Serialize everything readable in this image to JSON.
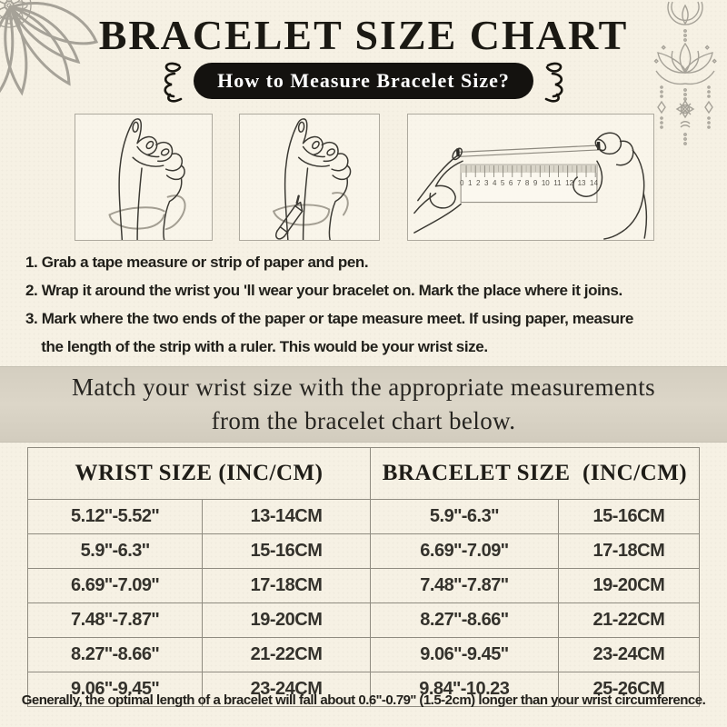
{
  "page": {
    "bg_color": "#f6f1e4",
    "banner_color": "#d8d2c4",
    "ink_color": "#1b1913",
    "line_color": "#8f8b80"
  },
  "header": {
    "title": "BRACELET SIZE CHART",
    "subtitle": "How to Measure Bracelet Size?"
  },
  "illustrations": {
    "items": [
      "wrap-tape-around-wrist",
      "mark-meeting-point-with-pen",
      "measure-strip-with-ruler"
    ],
    "ruler_numbers": [
      "0",
      "1",
      "2",
      "3",
      "4",
      "5",
      "6",
      "7",
      "8",
      "9",
      "10",
      "11",
      "12",
      "13",
      "14"
    ]
  },
  "steps": [
    "1. Grab a tape measure or strip of paper and pen.",
    "2. Wrap it around the wrist you 'll wear your bracelet on. Mark the place where it joins.",
    "3. Mark where the two ends of the paper or tape measure meet. If using paper, measure\n    the length of the strip with a ruler. This would be your wrist size."
  ],
  "banner": {
    "line1": "Match your wrist size with the appropriate measurements",
    "line2": "from the bracelet chart below."
  },
  "table": {
    "headers": [
      "WRIST SIZE (INC/CM)",
      "BRACELET SIZE  (INC/CM)"
    ],
    "rows": [
      [
        "5.12''-5.52''",
        "13-14CM",
        "5.9''-6.3''",
        "15-16CM"
      ],
      [
        "5.9''-6.3''",
        "15-16CM",
        "6.69''-7.09''",
        "17-18CM"
      ],
      [
        "6.69''-7.09''",
        "17-18CM",
        "7.48''-7.87''",
        "19-20CM"
      ],
      [
        "7.48''-7.87''",
        "19-20CM",
        "8.27''-8.66''",
        "21-22CM"
      ],
      [
        "8.27''-8.66''",
        "21-22CM",
        "9.06''-9.45''",
        "23-24CM"
      ],
      [
        "9.06''-9.45''",
        "23-24CM",
        "9.84''-10.23",
        "25-26CM"
      ]
    ]
  },
  "footnote": {
    "text": "Generally, the optimal length of a bracelet will fall about 0.6''-0.79'' (1.5-2cm) longer than your wrist circumference."
  },
  "chart_data": {
    "type": "table",
    "columns": [
      "WRIST SIZE (INC)",
      "WRIST SIZE (CM)",
      "BRACELET SIZE (INC)",
      "BRACELET SIZE (CM)"
    ],
    "rows": [
      [
        "5.12''-5.52''",
        "13-14CM",
        "5.9''-6.3''",
        "15-16CM"
      ],
      [
        "5.9''-6.3''",
        "15-16CM",
        "6.69''-7.09''",
        "17-18CM"
      ],
      [
        "6.69''-7.09''",
        "17-18CM",
        "7.48''-7.87''",
        "19-20CM"
      ],
      [
        "7.48''-7.87''",
        "19-20CM",
        "8.27''-8.66''",
        "21-22CM"
      ],
      [
        "8.27''-8.66''",
        "21-22CM",
        "9.06''-9.45''",
        "23-24CM"
      ],
      [
        "9.06''-9.45''",
        "23-24CM",
        "9.84''-10.23",
        "25-26CM"
      ]
    ],
    "title": "BRACELET SIZE CHART"
  }
}
